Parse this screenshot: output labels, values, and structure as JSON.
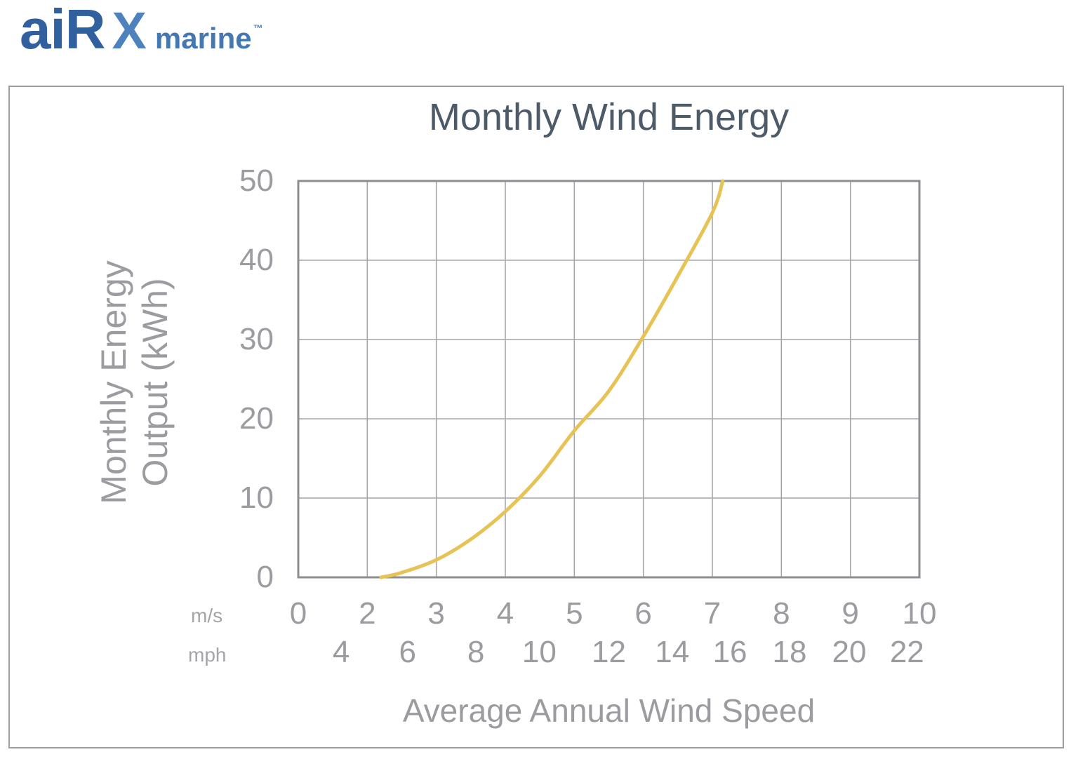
{
  "logo": {
    "air": "aiR",
    "x": "X",
    "marine": "marine",
    "tm": "™"
  },
  "chart": {
    "title": "Monthly Wind Energy",
    "y_axis_label_line1": "Monthly Energy",
    "y_axis_label_line2": "Output (kWh)",
    "x_axis_label": "Average Annual Wind Speed",
    "unit_ms": "m/s",
    "unit_mph": "mph"
  },
  "chart_data": {
    "type": "line",
    "title": "Monthly Wind Energy",
    "xlabel": "Average Annual Wind Speed",
    "ylabel": "Monthly Energy Output (kWh)",
    "ylim": [
      0,
      50
    ],
    "y_ticks": [
      0,
      10,
      20,
      30,
      40,
      50
    ],
    "x_ticks_ms": [
      0,
      2,
      3,
      4,
      5,
      6,
      7,
      8,
      9,
      10
    ],
    "x_ticks_mph": [
      4,
      6,
      8,
      10,
      12,
      14,
      16,
      18,
      20,
      22
    ],
    "x_ticks_mph_pos": [
      0.069,
      0.176,
      0.286,
      0.388,
      0.5,
      0.602,
      0.695,
      0.791,
      0.887,
      0.98
    ],
    "grid": true,
    "legend": false,
    "series": [
      {
        "color": "#e7c254",
        "points_ms_kwh": [
          [
            2.2,
            0
          ],
          [
            2.5,
            0.6
          ],
          [
            3,
            2.2
          ],
          [
            3.5,
            4.8
          ],
          [
            4,
            8.3
          ],
          [
            4.5,
            12.8
          ],
          [
            5,
            18.5
          ],
          [
            5.5,
            23.5
          ],
          [
            6,
            30.4
          ],
          [
            6.5,
            38
          ],
          [
            7,
            46
          ],
          [
            7.15,
            50
          ]
        ]
      }
    ]
  },
  "colors": {
    "curve": "#e7c254",
    "grid": "#a4a4a8",
    "plot_border": "#8d8d92",
    "panel_border": "#9e9ea2",
    "title_text": "#4d5a67",
    "axis_text": "#9b9ba0",
    "logo_dark_blue": "#31609f",
    "logo_light_blue": "#4e82bd",
    "logo_marine_blue": "#4478b4"
  }
}
